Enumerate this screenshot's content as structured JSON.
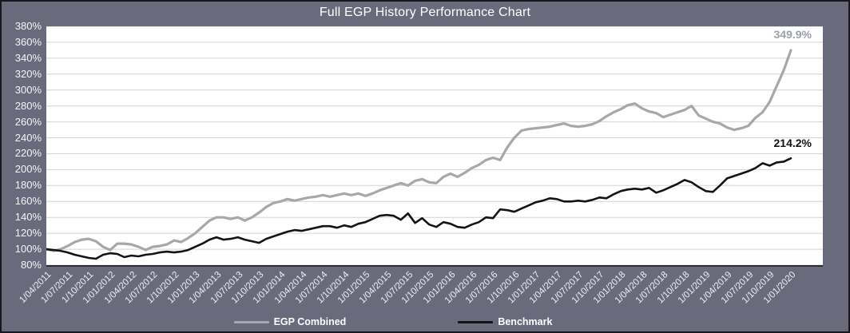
{
  "window": {
    "title": "Full EGP History Performance Chart"
  },
  "colors": {
    "background": "#696b7c",
    "border": "#17171d",
    "plot_background": "#ffffff",
    "gridline": "#d4d4d4",
    "axis_line": "#2e2e2e",
    "axis_text": "#ffffff",
    "egp_line": "#a4a9ae",
    "benchmark_line": "#141414",
    "egp_annotation": "#9aa0a7",
    "benchmark_annotation": "#121212"
  },
  "chart_data": {
    "type": "line",
    "title": "Full EGP History Performance Chart",
    "xlabel": "",
    "ylabel": "",
    "ylim": [
      80,
      380
    ],
    "ytick_step": 20,
    "y_tick_labels": [
      "380%",
      "360%",
      "340%",
      "320%",
      "300%",
      "280%",
      "260%",
      "240%",
      "220%",
      "200%",
      "180%",
      "160%",
      "140%",
      "120%",
      "100%",
      "80%"
    ],
    "x_tick_labels": [
      "1/04/2011",
      "1/07/2011",
      "1/10/2011",
      "1/01/2012",
      "1/04/2012",
      "1/07/2012",
      "1/10/2012",
      "1/01/2013",
      "1/04/2013",
      "1/07/2013",
      "1/10/2013",
      "1/01/2014",
      "1/04/2014",
      "1/07/2014",
      "1/10/2014",
      "1/01/2015",
      "1/04/2015",
      "1/07/2015",
      "1/10/2015",
      "1/01/2016",
      "1/04/2016",
      "1/07/2016",
      "1/10/2016",
      "1/01/2017",
      "1/04/2017",
      "1/07/2017",
      "1/10/2017",
      "1/01/2018",
      "1/04/2018",
      "1/07/2018",
      "1/10/2018",
      "1/01/2019",
      "1/04/2019",
      "1/07/2019",
      "1/10/2019",
      "1/01/2020"
    ],
    "x_note": "monthly data points from 1/04/2011 to 1/01/2020, quarterly tick labels",
    "grid": "horizontal",
    "legend_position": "bottom",
    "series": [
      {
        "name": "EGP Combined",
        "color": "#a4a9ae",
        "stroke_width": 3.2,
        "final_label": "349.9%",
        "values": [
          100,
          98,
          100,
          104,
          109,
          112,
          113,
          110,
          103,
          99,
          107,
          107,
          106,
          103,
          99,
          103,
          104,
          106,
          111,
          109,
          114,
          120,
          128,
          136,
          140,
          140,
          138,
          140,
          136,
          140,
          146,
          153,
          158,
          160,
          163,
          161,
          163,
          165,
          166,
          168,
          166,
          168,
          170,
          168,
          170,
          167,
          170,
          174,
          177,
          180,
          183,
          180,
          186,
          188,
          184,
          183,
          191,
          195,
          191,
          196,
          202,
          206,
          212,
          215,
          212,
          228,
          240,
          249,
          251,
          252,
          253,
          254,
          256,
          258,
          255,
          254,
          255,
          257,
          261,
          267,
          272,
          276,
          281,
          283,
          277,
          273,
          271,
          266,
          269,
          272,
          275,
          280,
          268,
          264,
          260,
          258,
          253,
          250,
          252,
          255,
          265,
          272,
          285,
          305,
          325,
          349.9
        ]
      },
      {
        "name": "Benchmark",
        "color": "#141414",
        "stroke_width": 2.6,
        "final_label": "214.2%",
        "values": [
          100,
          99,
          98,
          96,
          93,
          91,
          89,
          88,
          93,
          95,
          94,
          90,
          92,
          91,
          93,
          94,
          96,
          97,
          96,
          97,
          99,
          103,
          107,
          112,
          115,
          112,
          113,
          115,
          112,
          110,
          108,
          113,
          116,
          119,
          122,
          124,
          123,
          125,
          127,
          129,
          129,
          127,
          130,
          128,
          132,
          134,
          138,
          142,
          143,
          142,
          137,
          145,
          133,
          139,
          131,
          128,
          134,
          132,
          128,
          127,
          131,
          134,
          140,
          139,
          150,
          149,
          147,
          151,
          155,
          159,
          161,
          164,
          163,
          160,
          160,
          161,
          160,
          162,
          165,
          164,
          169,
          173,
          175,
          176,
          175,
          177,
          171,
          174,
          178,
          182,
          187,
          184,
          178,
          173,
          172,
          180,
          189,
          192,
          195,
          198,
          202,
          208,
          205,
          209,
          210,
          214.2
        ]
      }
    ],
    "annotations": [
      {
        "text": "349.9%",
        "series": "EGP Combined",
        "position": "end-of-line"
      },
      {
        "text": "214.2%",
        "series": "Benchmark",
        "position": "end-of-line"
      }
    ]
  }
}
